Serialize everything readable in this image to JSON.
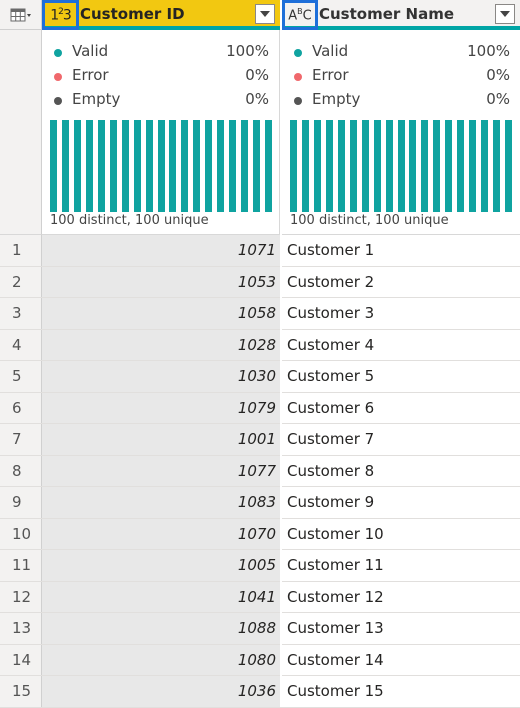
{
  "columns": [
    {
      "type_icon": "123",
      "name": "Customer ID",
      "profile": {
        "valid_label": "Valid",
        "valid_pct": "100%",
        "error_label": "Error",
        "error_pct": "0%",
        "empty_label": "Empty",
        "empty_pct": "0%",
        "distinct_text": "100 distinct, 100 unique"
      }
    },
    {
      "type_icon": "ABC",
      "name": "Customer Name",
      "profile": {
        "valid_label": "Valid",
        "valid_pct": "100%",
        "error_label": "Error",
        "error_pct": "0%",
        "empty_label": "Empty",
        "empty_pct": "0%",
        "distinct_text": "100 distinct, 100 unique"
      }
    }
  ],
  "colors": {
    "valid": "#0fa3a0",
    "error": "#f0686c",
    "empty": "#555555",
    "header_highlight": "#f2c811",
    "type_box_border": "#1e6fd9"
  },
  "rows": [
    {
      "num": "1",
      "id": "1071",
      "name": "Customer 1"
    },
    {
      "num": "2",
      "id": "1053",
      "name": "Customer 2"
    },
    {
      "num": "3",
      "id": "1058",
      "name": "Customer 3"
    },
    {
      "num": "4",
      "id": "1028",
      "name": "Customer 4"
    },
    {
      "num": "5",
      "id": "1030",
      "name": "Customer 5"
    },
    {
      "num": "6",
      "id": "1079",
      "name": "Customer 6"
    },
    {
      "num": "7",
      "id": "1001",
      "name": "Customer 7"
    },
    {
      "num": "8",
      "id": "1077",
      "name": "Customer 8"
    },
    {
      "num": "9",
      "id": "1083",
      "name": "Customer 9"
    },
    {
      "num": "10",
      "id": "1070",
      "name": "Customer 10"
    },
    {
      "num": "11",
      "id": "1005",
      "name": "Customer 11"
    },
    {
      "num": "12",
      "id": "1041",
      "name": "Customer 12"
    },
    {
      "num": "13",
      "id": "1088",
      "name": "Customer 13"
    },
    {
      "num": "14",
      "id": "1080",
      "name": "Customer 14"
    },
    {
      "num": "15",
      "id": "1036",
      "name": "Customer 15"
    }
  ]
}
